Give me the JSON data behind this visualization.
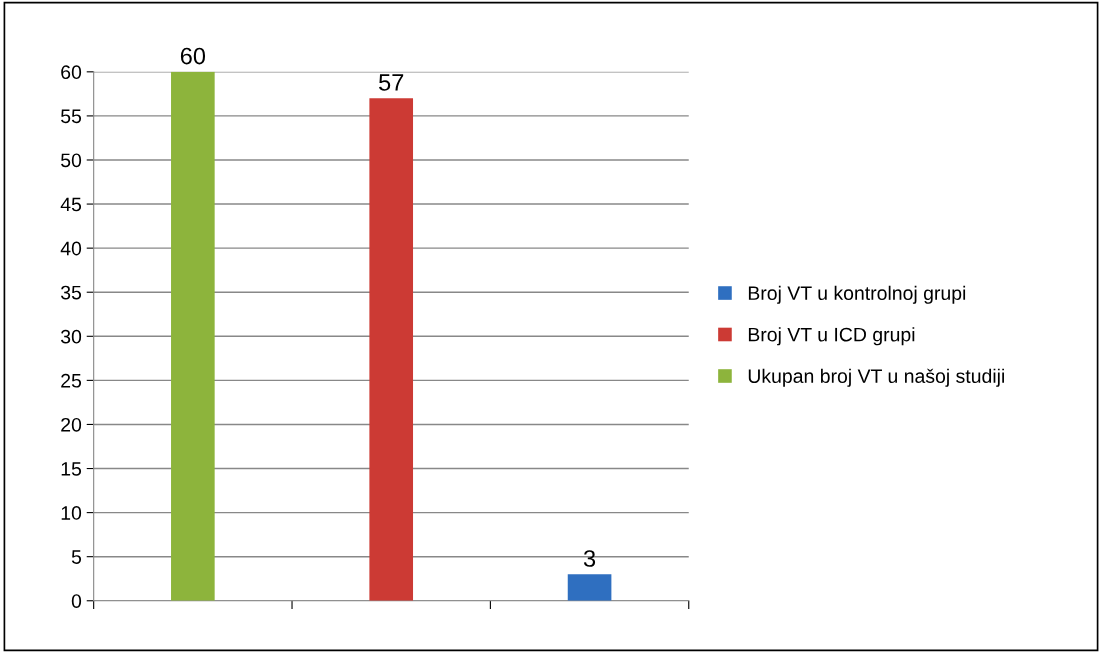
{
  "chart_data": {
    "type": "bar",
    "categories": [
      null,
      null,
      null
    ],
    "series": [
      {
        "name": "Broj VT u kontrolnoj grupi",
        "color": "#2f6fc0",
        "values": [
          null,
          null,
          3
        ]
      },
      {
        "name": "Broj VT u ICD grupi",
        "color": "#cc3a34",
        "values": [
          null,
          57,
          null
        ]
      },
      {
        "name": "Ukupan broj VT u našoj studiji",
        "color": "#8db43c",
        "values": [
          60,
          null,
          null
        ]
      }
    ],
    "ylim": [
      0,
      60
    ],
    "yticks": [
      0,
      5,
      10,
      15,
      20,
      25,
      30,
      35,
      40,
      45,
      50,
      55,
      60
    ],
    "grid": "y",
    "legend": "right",
    "data_labels": true
  }
}
